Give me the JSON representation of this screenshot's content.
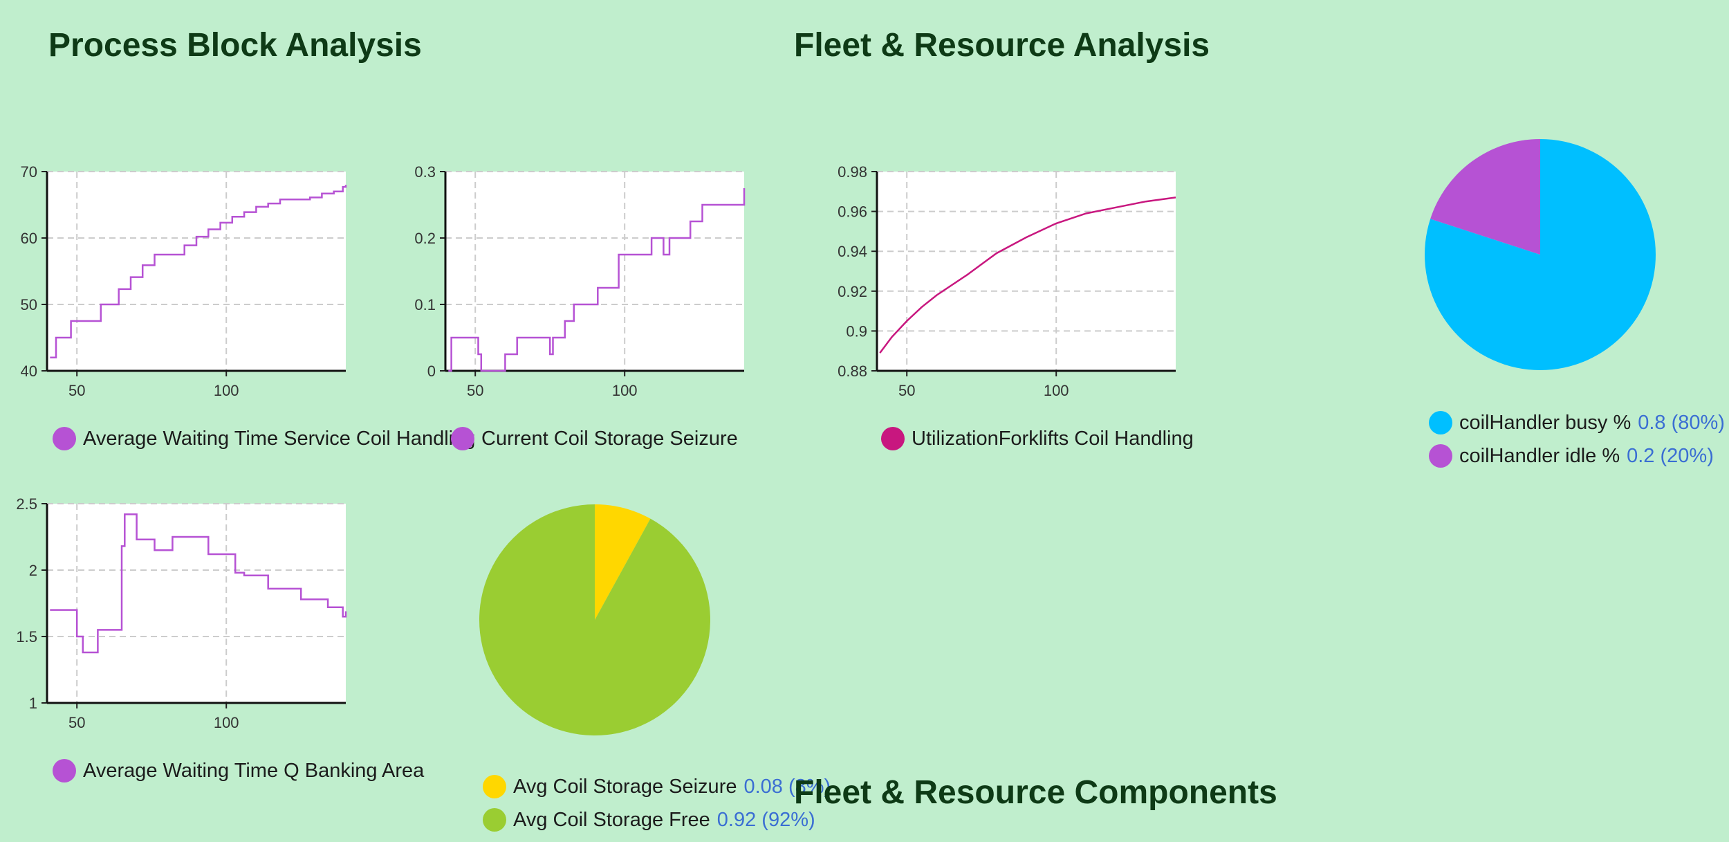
{
  "sections": {
    "process": "Process Block Analysis",
    "fleet": "Fleet & Resource Analysis",
    "components": "Fleet & Resource Components"
  },
  "colors": {
    "background": "#c0eecd",
    "purple": "#b652d4",
    "magenta": "#c8177f",
    "cyan": "#00bfff",
    "yellow": "#ffd700",
    "green": "#9acd32"
  },
  "chart_data": [
    {
      "id": "awt-coil",
      "type": "line",
      "color": "#b652d4",
      "grid": true,
      "legend": "Average Waiting Time Service Coil Handling",
      "xlim": [
        40,
        140
      ],
      "ylim": [
        40,
        70
      ],
      "xticks": [
        50,
        100
      ],
      "yticks": [
        40,
        50,
        60,
        70
      ],
      "step": true,
      "series": [
        {
          "name": "Average Waiting Time Service Coil Handling",
          "x": [
            41,
            42,
            43,
            47,
            48,
            53,
            58,
            60,
            64,
            68,
            72,
            76,
            80,
            86,
            90,
            94,
            98,
            102,
            106,
            110,
            114,
            118,
            122,
            128,
            132,
            136,
            139,
            140
          ],
          "y": [
            42,
            42,
            45,
            45,
            47.5,
            47.5,
            50,
            50,
            52.3,
            54.1,
            55.9,
            57.5,
            57.5,
            58.9,
            60.2,
            61.3,
            62.3,
            63.2,
            63.9,
            64.7,
            65.2,
            65.8,
            65.8,
            66.1,
            66.7,
            67,
            67.7,
            68
          ]
        }
      ]
    },
    {
      "id": "ccs-seizure",
      "type": "line",
      "color": "#b652d4",
      "grid": true,
      "legend": "Current Coil Storage Seizure",
      "xlim": [
        40,
        140
      ],
      "ylim": [
        0,
        0.3
      ],
      "xticks": [
        50,
        100
      ],
      "yticks": [
        0,
        0.1,
        0.2,
        0.3
      ],
      "step": true,
      "series": [
        {
          "name": "Current Coil Storage Seizure",
          "x": [
            41,
            42,
            50,
            51,
            52,
            58,
            60,
            64,
            66,
            75,
            76,
            78,
            80,
            83,
            85,
            88,
            91,
            93,
            97,
            98,
            105,
            109,
            113,
            115,
            117,
            122,
            126,
            130,
            139,
            140
          ],
          "y": [
            0,
            0.05,
            0.05,
            0.025,
            0,
            0,
            0.025,
            0.05,
            0.05,
            0.025,
            0.05,
            0.05,
            0.075,
            0.1,
            0.1,
            0.1,
            0.125,
            0.125,
            0.125,
            0.175,
            0.175,
            0.2,
            0.175,
            0.2,
            0.2,
            0.225,
            0.25,
            0.25,
            0.25,
            0.275
          ]
        }
      ]
    },
    {
      "id": "util-forklifts",
      "type": "line",
      "color": "#c8177f",
      "grid": true,
      "legend": "UtilizationForklifts Coil Handling",
      "xlim": [
        40,
        140
      ],
      "ylim": [
        0.88,
        0.98
      ],
      "xticks": [
        50,
        100
      ],
      "yticks": [
        0.88,
        0.9,
        0.92,
        0.94,
        0.96,
        0.98
      ],
      "yticklabels": [
        "0.88",
        "0.9",
        "0.92",
        "0.94",
        "0.96",
        "0.98"
      ],
      "step": false,
      "series": [
        {
          "name": "UtilizationForklifts Coil Handling",
          "x": [
            41,
            45,
            50,
            55,
            60,
            70,
            80,
            90,
            100,
            110,
            120,
            130,
            140
          ],
          "y": [
            0.889,
            0.897,
            0.905,
            0.912,
            0.918,
            0.928,
            0.939,
            0.947,
            0.954,
            0.959,
            0.962,
            0.965,
            0.967
          ]
        }
      ]
    },
    {
      "id": "awt-banking",
      "type": "line",
      "color": "#b652d4",
      "grid": true,
      "legend": "Average Waiting Time Q Banking Area",
      "xlim": [
        40,
        140
      ],
      "ylim": [
        1,
        2.5
      ],
      "xticks": [
        50,
        100
      ],
      "yticks": [
        1,
        1.5,
        2,
        2.5
      ],
      "yticklabels": [
        "1",
        "1.5",
        "2",
        "2.5"
      ],
      "step": true,
      "series": [
        {
          "name": "Average Waiting Time Q Banking Area",
          "x": [
            41,
            49,
            50,
            51,
            52,
            56,
            57,
            64,
            65,
            66,
            67,
            70,
            71,
            76,
            80,
            82,
            85,
            88,
            94,
            101,
            103,
            106,
            110,
            114,
            120,
            125,
            129,
            134,
            139,
            140
          ],
          "y": [
            1.7,
            1.7,
            1.5,
            1.5,
            1.38,
            1.38,
            1.55,
            1.55,
            2.18,
            2.42,
            2.42,
            2.23,
            2.23,
            2.15,
            2.15,
            2.25,
            2.25,
            2.25,
            2.12,
            2.12,
            1.98,
            1.96,
            1.96,
            1.86,
            1.86,
            1.78,
            1.78,
            1.72,
            1.65,
            1.69
          ]
        }
      ]
    },
    {
      "id": "pie-coil-storage",
      "type": "pie",
      "labels": [
        "Avg Coil Storage Seizure",
        "Avg Coil Storage Free"
      ],
      "values": [
        0.08,
        0.92
      ],
      "value_labels": [
        "0.08 (8%)",
        "0.92 (92%)"
      ],
      "colors": [
        "#ffd700",
        "#9acd32"
      ]
    },
    {
      "id": "pie-coil-handler",
      "type": "pie",
      "labels": [
        "coilHandler busy %",
        "coilHandler idle %"
      ],
      "values": [
        0.8,
        0.2
      ],
      "value_labels": [
        "0.8 (80%)",
        "0.2 (20%)"
      ],
      "colors": [
        "#00bfff",
        "#b652d4"
      ]
    }
  ]
}
